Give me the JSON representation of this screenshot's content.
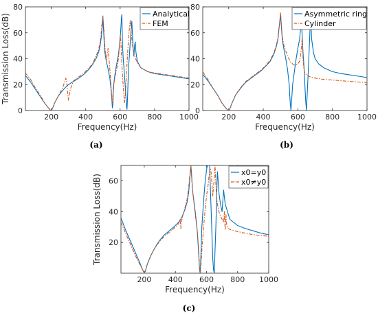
{
  "colors": {
    "blue": "#0072bd",
    "orange": "#d95319"
  },
  "chart_data": [
    {
      "id": "a",
      "type": "line",
      "caption": "(a)",
      "xlabel": "Frequency(Hz)",
      "ylabel": "Transmission Loss(dB)",
      "xlim": [
        50,
        1000
      ],
      "ylim": [
        0,
        80
      ],
      "xticks": [
        200,
        400,
        600,
        800,
        1000
      ],
      "yticks": [
        0,
        20,
        40,
        60,
        80
      ],
      "legend_position": "top-right",
      "series": [
        {
          "name": "Analytical",
          "style": "solid",
          "color": "#0072bd",
          "x": [
            50,
            80,
            110,
            140,
            160,
            180,
            190,
            195,
            200,
            205,
            210,
            220,
            240,
            260,
            280,
            300,
            330,
            360,
            390,
            420,
            440,
            460,
            475,
            485,
            492,
            497,
            500,
            504,
            510,
            520,
            530,
            540,
            548,
            552,
            555,
            558,
            560,
            563,
            566,
            570,
            575,
            580,
            590,
            600,
            605,
            608,
            610,
            612,
            614,
            618,
            622,
            626,
            630,
            634,
            637,
            640,
            643,
            646,
            650,
            655,
            660,
            664,
            668,
            672,
            676,
            680,
            684,
            688,
            692,
            700,
            720,
            760,
            800,
            850,
            900,
            950,
            1000
          ],
          "y": [
            27,
            22,
            16,
            10,
            6,
            2.5,
            1,
            0.3,
            0.2,
            1,
            2.5,
            6,
            11,
            14.5,
            17.5,
            20,
            22.5,
            25,
            28,
            32,
            35.5,
            40,
            45,
            51,
            58,
            66,
            73,
            62,
            46,
            38,
            32,
            25,
            15,
            8,
            2,
            5,
            14,
            20,
            24,
            28,
            32,
            36,
            43,
            55,
            65,
            72,
            74,
            62,
            50,
            40,
            33,
            26,
            18,
            10,
            3,
            1,
            10,
            22,
            35,
            45,
            55,
            62,
            69,
            58,
            48,
            42,
            50,
            53,
            45,
            38,
            33,
            30,
            28.5,
            27.5,
            26.5,
            25.5,
            24.5
          ]
        },
        {
          "name": "FEM",
          "style": "dashdot",
          "color": "#d95319",
          "x": [
            50,
            80,
            110,
            140,
            160,
            180,
            190,
            195,
            200,
            205,
            210,
            220,
            240,
            260,
            270,
            280,
            285,
            290,
            295,
            300,
            310,
            330,
            360,
            390,
            420,
            440,
            460,
            475,
            485,
            490,
            495,
            500,
            505,
            510,
            515,
            520,
            525,
            530,
            535,
            540,
            545,
            550,
            555,
            560,
            570,
            580,
            590,
            595,
            600,
            605,
            610,
            615,
            620,
            625,
            630,
            635,
            640,
            645,
            650,
            655,
            660,
            665,
            670,
            675,
            680,
            690,
            700,
            720,
            760,
            800,
            850,
            900,
            950,
            1000
          ],
          "y": [
            29,
            24,
            17,
            11,
            6,
            2.5,
            1,
            0.3,
            0.2,
            1,
            2.5,
            6,
            11,
            16,
            19,
            23,
            25,
            22,
            14,
            8,
            16,
            23,
            26,
            29,
            33,
            36,
            42,
            47,
            54,
            60,
            68,
            72,
            65,
            52,
            44,
            38,
            44,
            48,
            40,
            32,
            24,
            13,
            5,
            18,
            26,
            32,
            40,
            48,
            58,
            52,
            35,
            25,
            15,
            6,
            12,
            24,
            36,
            48,
            58,
            65,
            70,
            60,
            52,
            48,
            44,
            40,
            37,
            33,
            30,
            29,
            28,
            27,
            26,
            25
          ]
        }
      ]
    },
    {
      "id": "b",
      "type": "line",
      "caption": "(b)",
      "xlabel": "Frequency(Hz)",
      "ylabel": "",
      "xlim": [
        50,
        1000
      ],
      "ylim": [
        0,
        80
      ],
      "xticks": [
        200,
        400,
        600,
        800,
        1000
      ],
      "yticks": [
        0,
        20,
        40,
        60,
        80
      ],
      "legend_position": "top-right",
      "series": [
        {
          "name": "Asymmetric ring",
          "style": "solid",
          "color": "#0072bd",
          "x": [
            50,
            80,
            110,
            140,
            160,
            180,
            190,
            195,
            200,
            205,
            210,
            220,
            240,
            260,
            280,
            300,
            330,
            360,
            390,
            420,
            440,
            460,
            475,
            485,
            490,
            495,
            500,
            505,
            510,
            520,
            530,
            540,
            550,
            555,
            560,
            565,
            570,
            580,
            590,
            600,
            610,
            615,
            620,
            625,
            630,
            635,
            640,
            645,
            650,
            655,
            660,
            665,
            670,
            675,
            680,
            690,
            700,
            720,
            750,
            800,
            850,
            900,
            950,
            1000
          ],
          "y": [
            28,
            23,
            17,
            11,
            6,
            2.5,
            1,
            0.3,
            0.2,
            1,
            2.5,
            6,
            12,
            15.5,
            19,
            22,
            25,
            28,
            31,
            35,
            38,
            43,
            49,
            55,
            62,
            68,
            74,
            64,
            55,
            47,
            40,
            32,
            20,
            8,
            0,
            10,
            20,
            30,
            40,
            48,
            55,
            62,
            68,
            58,
            45,
            35,
            22,
            8,
            0,
            15,
            30,
            45,
            62,
            70,
            55,
            45,
            40,
            36,
            33,
            30,
            28.5,
            27.5,
            26.5,
            25.5
          ]
        },
        {
          "name": "Cylinder",
          "style": "dashdot",
          "color": "#d95319",
          "x": [
            50,
            80,
            110,
            140,
            160,
            180,
            190,
            195,
            200,
            205,
            210,
            220,
            240,
            260,
            280,
            300,
            330,
            360,
            390,
            420,
            440,
            460,
            475,
            485,
            490,
            495,
            500,
            505,
            510,
            520,
            540,
            560,
            580,
            600,
            610,
            615,
            620,
            625,
            630,
            635,
            640,
            650,
            670,
            700,
            750,
            800,
            850,
            900,
            950,
            1000
          ],
          "y": [
            30,
            24,
            17,
            11,
            6,
            2.5,
            1,
            0.3,
            0.2,
            1,
            2.5,
            6,
            12,
            16,
            19.5,
            22.5,
            25.5,
            28.5,
            31.5,
            35.5,
            39,
            44,
            50,
            56,
            63,
            69,
            76,
            66,
            57,
            50,
            42,
            37,
            35,
            36,
            38,
            42,
            48,
            56,
            40,
            32,
            29,
            27.5,
            26,
            25,
            24,
            23.5,
            23,
            22.5,
            22,
            21.5
          ]
        }
      ]
    },
    {
      "id": "c",
      "type": "line",
      "caption": "(c)",
      "xlabel": "Frequency(Hz)",
      "ylabel": "Transmission Loss(dB)",
      "xlim": [
        50,
        1000
      ],
      "ylim": [
        0,
        70
      ],
      "xticks": [
        200,
        400,
        600,
        800,
        1000
      ],
      "yticks": [
        20,
        40,
        60
      ],
      "legend_position": "top-right",
      "series": [
        {
          "name": "x0=y0",
          "style": "solid",
          "color": "#0072bd",
          "x": [
            50,
            80,
            110,
            140,
            170,
            190,
            200,
            205,
            210,
            220,
            240,
            260,
            280,
            300,
            330,
            360,
            390,
            420,
            440,
            460,
            475,
            485,
            490,
            495,
            500,
            505,
            510,
            520,
            530,
            540,
            550,
            555,
            560,
            565,
            570,
            580,
            590,
            600,
            610,
            615,
            620,
            625,
            630,
            635,
            640,
            645,
            650,
            655,
            660,
            665,
            670,
            675,
            680,
            690,
            700,
            710,
            720,
            750,
            800,
            850,
            900,
            950,
            1000
          ],
          "y": [
            36,
            28,
            21,
            14,
            7,
            2,
            0.3,
            1,
            2.5,
            6,
            11,
            15,
            18.5,
            21.5,
            25,
            27.5,
            30,
            33,
            36,
            41,
            46,
            52,
            58,
            64,
            70,
            62,
            54,
            46,
            38,
            28,
            12,
            2,
            0,
            15,
            30,
            45,
            58,
            67,
            72,
            80,
            70,
            55,
            40,
            25,
            10,
            2,
            0,
            15,
            30,
            50,
            66,
            60,
            52,
            45,
            40,
            54,
            45,
            35,
            31,
            29,
            27.5,
            26,
            25
          ]
        },
        {
          "name": "x0≠y0",
          "style": "dashdot",
          "color": "#d95319",
          "x": [
            50,
            80,
            110,
            140,
            170,
            190,
            200,
            205,
            210,
            220,
            240,
            260,
            280,
            300,
            330,
            360,
            390,
            420,
            430,
            435,
            440,
            450,
            460,
            475,
            485,
            490,
            495,
            500,
            505,
            510,
            520,
            530,
            540,
            550,
            555,
            560,
            565,
            570,
            580,
            590,
            600,
            610,
            615,
            620,
            625,
            630,
            640,
            650,
            655,
            660,
            665,
            670,
            680,
            690,
            700,
            710,
            715,
            720,
            725,
            730,
            735,
            740,
            760,
            800,
            850,
            900,
            950,
            1000
          ],
          "y": [
            33,
            26,
            19,
            12,
            6,
            2,
            0.3,
            1,
            2.5,
            6,
            11,
            15,
            18,
            21,
            24,
            26.5,
            29,
            32,
            35,
            29,
            34,
            38,
            42,
            48,
            55,
            61,
            66,
            70,
            62,
            54,
            45,
            36,
            28,
            15,
            4,
            0,
            6,
            15,
            28,
            40,
            50,
            57,
            62,
            66,
            68,
            65,
            50,
            62,
            70,
            58,
            50,
            45,
            40,
            37,
            35,
            33,
            40,
            28,
            38,
            31,
            30,
            29,
            28,
            27,
            26,
            25,
            24.5,
            24
          ]
        }
      ]
    }
  ]
}
